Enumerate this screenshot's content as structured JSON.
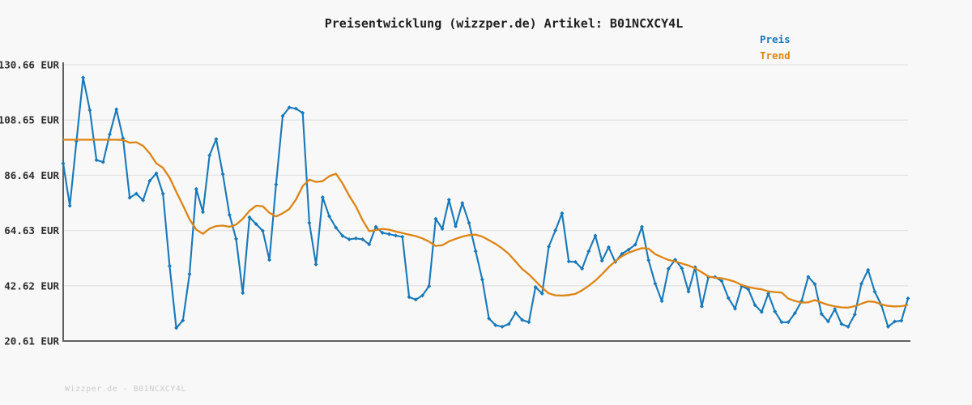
{
  "title": "Preisentwicklung (wizzper.de) Artikel: B01NCXCY4L",
  "legend": {
    "items": [
      {
        "label": "Preis",
        "color": "#1878b8"
      },
      {
        "label": "Trend",
        "color": "#dd8414"
      }
    ]
  },
  "footer": {
    "text": "Wizzper.de - B01NCXCY4L"
  },
  "chart_data": {
    "type": "line",
    "title": "Preisentwicklung (wizzper.de) Artikel: B01NCXCY4L",
    "xlabel": "",
    "ylabel": "EUR",
    "ylim": [
      20.61,
      130.66
    ],
    "grid": true,
    "legend_position": "top-right",
    "x_axis_note": "time axis, no tick labels shown",
    "yticks": [
      {
        "value": 130.66,
        "label": "130.66 EUR"
      },
      {
        "value": 108.65,
        "label": "108.65 EUR"
      },
      {
        "value": 86.64,
        "label": "86.64 EUR"
      },
      {
        "value": 64.63,
        "label": "64.63 EUR"
      },
      {
        "value": 42.62,
        "label": "42.62 EUR"
      },
      {
        "value": 20.61,
        "label": "20.61 EUR"
      }
    ],
    "colors": {
      "grid": "#e4e4e4",
      "spine": "#616163",
      "background": "#f8f8f8"
    },
    "series": [
      {
        "name": "Preis",
        "color": "#1878b8",
        "marker": "diamond",
        "values": [
          91.4,
          74.5,
          100.2,
          125.6,
          112.6,
          92.7,
          91.9,
          103.0,
          112.9,
          101.4,
          77.7,
          79.3,
          76.7,
          84.4,
          87.4,
          79.3,
          50.5,
          25.8,
          28.8,
          47.3,
          81.2,
          72.0,
          94.6,
          101.1,
          87.1,
          70.9,
          61.3,
          39.7,
          69.9,
          67.2,
          64.5,
          52.9,
          83.0,
          110.3,
          113.7,
          113.2,
          111.5,
          67.7,
          51.1,
          77.9,
          70.3,
          65.8,
          62.5,
          61.1,
          61.5,
          61.1,
          59.1,
          66.1,
          63.7,
          63.2,
          62.6,
          62.1,
          38.1,
          37.1,
          38.7,
          42.5,
          69.3,
          65.3,
          76.9,
          66.3,
          75.6,
          67.7,
          56.4,
          45.1,
          29.6,
          26.9,
          26.3,
          27.4,
          31.9,
          29.0,
          28.1,
          42.1,
          39.5,
          58.2,
          64.7,
          71.5,
          52.3,
          52.1,
          49.4,
          56.4,
          62.6,
          52.6,
          58.0,
          52.1,
          55.4,
          57.0,
          59.0,
          66.1,
          52.8,
          43.5,
          36.5,
          49.4,
          53.0,
          49.6,
          40.3,
          50.0,
          34.4,
          46.1,
          46.1,
          44.5,
          37.7,
          33.5,
          42.5,
          41.2,
          34.9,
          32.2,
          39.5,
          32.4,
          28.1,
          28.1,
          31.7,
          36.5,
          46.2,
          43.3,
          31.4,
          28.4,
          33.3,
          27.4,
          26.3,
          31.2,
          43.5,
          48.9,
          40.3,
          34.9,
          26.3,
          28.4,
          28.7,
          37.6
        ]
      },
      {
        "name": "Trend",
        "color": "#dd8414",
        "marker": "none",
        "values": [
          100.8,
          100.8,
          100.8,
          100.8,
          100.8,
          100.8,
          100.8,
          100.8,
          100.8,
          100.7,
          99.6,
          99.8,
          98.4,
          95.4,
          91.4,
          89.6,
          85.7,
          80.1,
          74.7,
          69.1,
          65.0,
          63.3,
          65.4,
          66.4,
          66.6,
          66.1,
          67.0,
          69.3,
          72.5,
          74.5,
          74.3,
          71.7,
          70.2,
          71.5,
          73.2,
          77.0,
          82.3,
          84.9,
          84.0,
          84.3,
          86.3,
          87.3,
          83.4,
          78.5,
          74.2,
          68.8,
          64.4,
          64.8,
          65.3,
          65.0,
          64.2,
          63.6,
          63.0,
          62.4,
          61.5,
          60.2,
          58.5,
          58.8,
          60.3,
          61.3,
          62.2,
          62.8,
          63.0,
          62.2,
          60.8,
          59.3,
          57.5,
          55.3,
          52.3,
          49.3,
          47.2,
          44.5,
          41.8,
          39.6,
          38.8,
          38.7,
          38.9,
          39.4,
          40.8,
          42.6,
          44.7,
          47.2,
          50.0,
          52.4,
          54.4,
          55.8,
          56.8,
          57.6,
          57.4,
          55.2,
          54.0,
          52.9,
          52.3,
          51.5,
          50.7,
          49.6,
          48.0,
          46.3,
          45.8,
          45.6,
          45.0,
          44.2,
          42.9,
          42.1,
          41.6,
          41.2,
          40.4,
          40.1,
          39.9,
          37.5,
          36.6,
          35.9,
          36.0,
          36.9,
          35.9,
          35.0,
          34.4,
          34.0,
          33.9,
          34.5,
          35.5,
          36.4,
          36.2,
          35.2,
          34.6,
          34.4,
          34.5,
          35.0
        ]
      }
    ]
  }
}
